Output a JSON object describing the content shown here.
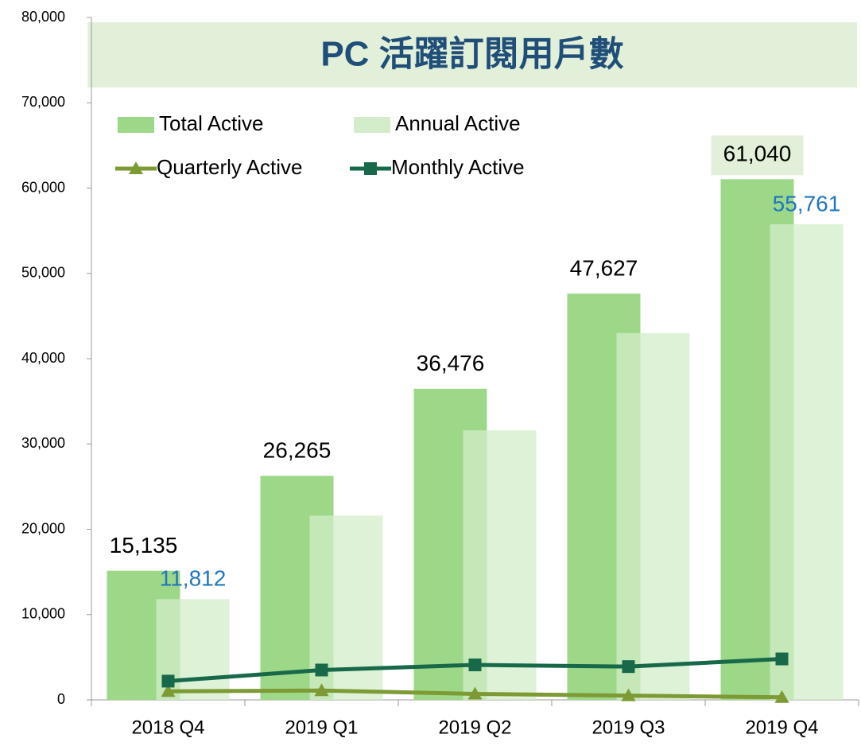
{
  "chart_data": {
    "type": "bar_line",
    "title": "PC 活躍訂閱用戶數",
    "categories": [
      "2018 Q4",
      "2019 Q1",
      "2019 Q2",
      "2019 Q3",
      "2019 Q4"
    ],
    "series": [
      {
        "name": "Total Active",
        "kind": "bar",
        "color": "#9dd788",
        "values": [
          15135,
          26265,
          36476,
          47627,
          61040
        ],
        "value_labels": [
          "15,135",
          "26,265",
          "36,476",
          "47,627",
          "61,040"
        ]
      },
      {
        "name": "Annual Active",
        "kind": "bar",
        "color": "#d3edca",
        "values": [
          11812,
          21600,
          31600,
          43000,
          55761
        ],
        "value_labels": [
          "11,812",
          null,
          null,
          null,
          "55,761"
        ]
      },
      {
        "name": "Quarterly Active",
        "kind": "line",
        "marker": "triangle",
        "color": "#7d9a35",
        "values": [
          1000,
          1100,
          700,
          500,
          300
        ]
      },
      {
        "name": "Monthly Active",
        "kind": "line",
        "marker": "square",
        "color": "#17694a",
        "values": [
          2200,
          3500,
          4100,
          3900,
          4800
        ]
      }
    ],
    "ylim": [
      0,
      80000
    ],
    "yticks": [
      0,
      {
        "value": 10000,
        "label": "10,000"
      },
      {
        "value": 20000,
        "label": "20,000"
      },
      {
        "value": 30000,
        "label": "30,000"
      },
      {
        "value": 40000,
        "label": "40,000"
      },
      {
        "value": 50000,
        "label": "50,000"
      },
      {
        "value": 60000,
        "label": "60,000"
      },
      {
        "value": 70000,
        "label": "70,000"
      },
      {
        "value": 80000,
        "label": "80,000"
      }
    ]
  }
}
